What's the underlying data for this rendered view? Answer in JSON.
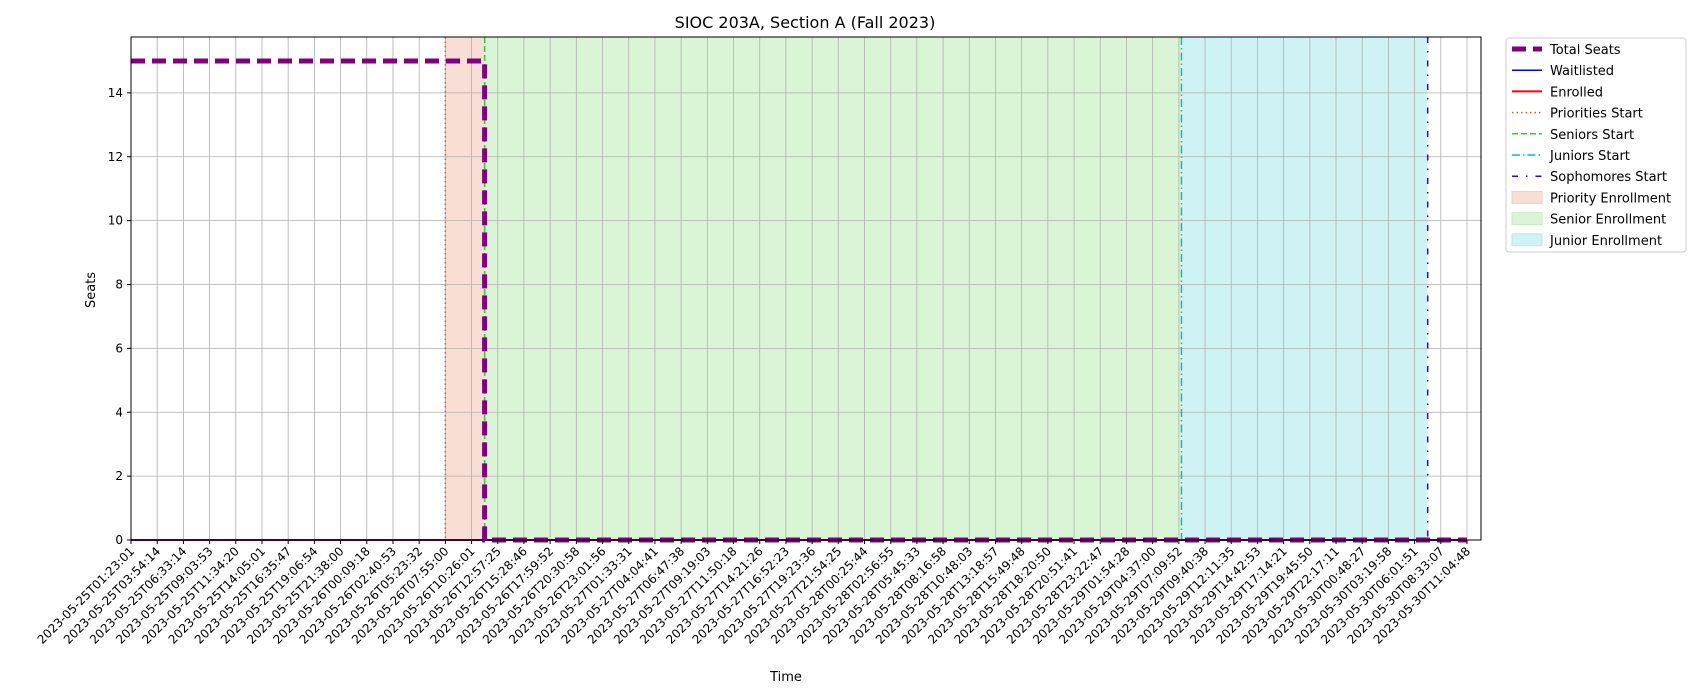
{
  "chart_data": {
    "type": "line",
    "title": "SIOC 203A, Section A (Fall 2023)",
    "xlabel": "Time",
    "ylabel": "Seats",
    "ylim": [
      0,
      15.75
    ],
    "yticks": [
      0,
      2,
      4,
      6,
      8,
      10,
      12,
      14
    ],
    "grid": true,
    "legend_position": "outside-top-right",
    "x_ticks": [
      "2023-05-25T01:23:01",
      "2023-05-25T03:54:14",
      "2023-05-25T06:33:14",
      "2023-05-25T09:03:53",
      "2023-05-25T11:34:20",
      "2023-05-25T14:05:01",
      "2023-05-25T16:35:47",
      "2023-05-25T19:06:54",
      "2023-05-25T21:38:00",
      "2023-05-26T00:09:18",
      "2023-05-26T02:40:53",
      "2023-05-26T05:23:32",
      "2023-05-26T07:55:00",
      "2023-05-26T10:26:01",
      "2023-05-26T12:57:25",
      "2023-05-26T15:28:46",
      "2023-05-26T17:59:52",
      "2023-05-26T20:30:58",
      "2023-05-26T23:01:56",
      "2023-05-27T01:33:31",
      "2023-05-27T04:04:41",
      "2023-05-27T06:47:38",
      "2023-05-27T09:19:03",
      "2023-05-27T11:50:18",
      "2023-05-27T14:21:26",
      "2023-05-27T16:52:23",
      "2023-05-27T19:23:36",
      "2023-05-27T21:54:25",
      "2023-05-28T00:25:44",
      "2023-05-28T02:56:55",
      "2023-05-28T05:45:33",
      "2023-05-28T08:16:58",
      "2023-05-28T10:48:03",
      "2023-05-28T13:18:57",
      "2023-05-28T15:49:48",
      "2023-05-28T18:20:50",
      "2023-05-28T20:51:41",
      "2023-05-28T23:22:47",
      "2023-05-29T01:54:28",
      "2023-05-29T04:37:00",
      "2023-05-29T07:09:52",
      "2023-05-29T09:40:38",
      "2023-05-29T12:11:35",
      "2023-05-29T14:42:53",
      "2023-05-29T17:14:21",
      "2023-05-29T19:45:50",
      "2023-05-29T22:17:11",
      "2023-05-30T00:48:27",
      "2023-05-30T03:19:58",
      "2023-05-30T06:01:51",
      "2023-05-30T08:33:07",
      "2023-05-30T11:04:48"
    ],
    "x_range": [
      0,
      51
    ],
    "series": [
      {
        "name": "Total Seats",
        "color": "#800080",
        "style": "dashed-thick",
        "points": [
          [
            0,
            15
          ],
          [
            13.5,
            15
          ],
          [
            13.5,
            0
          ],
          [
            51,
            0
          ]
        ]
      },
      {
        "name": "Waitlisted",
        "color": "#0000ff",
        "style": "solid",
        "points": [
          [
            0,
            0
          ],
          [
            51,
            0
          ]
        ]
      },
      {
        "name": "Enrolled",
        "color": "#ff0000",
        "style": "solid-thick",
        "points": [
          [
            0,
            0
          ],
          [
            51,
            0
          ]
        ]
      }
    ],
    "vertical_lines": [
      {
        "name": "Priorities Start",
        "x": 12,
        "color": "#d2691e",
        "style": "dotted"
      },
      {
        "name": "Seniors Start",
        "x": 13.5,
        "color": "#32cd32",
        "style": "dashed"
      },
      {
        "name": "Juniors Start",
        "x": 40.1,
        "color": "#00c0c0",
        "style": "dashdot"
      },
      {
        "name": "Sophomores Start",
        "x": 49.5,
        "color": "#3300ff",
        "style": "loose-dashdot"
      }
    ],
    "spans": [
      {
        "name": "Priority Enrollment",
        "from": 12,
        "to": 13.5,
        "color": "#f5cdbf"
      },
      {
        "name": "Senior Enrollment",
        "from": 13.5,
        "to": 40.1,
        "color": "#c6eec0"
      },
      {
        "name": "Junior Enrollment",
        "from": 40.1,
        "to": 49.5,
        "color": "#b5ebef"
      }
    ]
  }
}
